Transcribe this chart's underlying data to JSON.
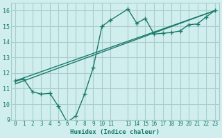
{
  "xlabel": "Humidex (Indice chaleur)",
  "bg_color": "#d0eeee",
  "grid_color": "#aacccc",
  "line_color": "#1a7a6a",
  "ylim": [
    9,
    16.5
  ],
  "xlim": [
    -0.5,
    23.5
  ],
  "yticks": [
    9,
    10,
    11,
    12,
    13,
    14,
    15,
    16
  ],
  "xticks": [
    0,
    1,
    2,
    3,
    4,
    5,
    6,
    7,
    8,
    9,
    10,
    11,
    13,
    14,
    15,
    16,
    17,
    18,
    19,
    20,
    21,
    22,
    23
  ],
  "xtick_labels": [
    "0",
    "1",
    "2",
    "3",
    "4",
    "5",
    "6",
    "7",
    "8",
    "9",
    "10",
    "11",
    "13",
    "14",
    "15",
    "16",
    "17",
    "18",
    "19",
    "20",
    "21",
    "22",
    "23"
  ],
  "curve1_x": [
    0,
    1,
    2,
    3,
    4,
    5,
    6,
    7,
    8,
    9,
    10,
    11,
    13,
    14,
    15,
    16,
    17,
    18,
    19,
    20,
    21,
    22,
    23
  ],
  "curve1_y": [
    11.5,
    11.6,
    10.8,
    10.65,
    10.7,
    9.85,
    8.85,
    9.25,
    10.65,
    12.35,
    15.0,
    15.4,
    16.1,
    15.2,
    15.5,
    14.5,
    14.55,
    14.6,
    14.7,
    15.1,
    15.15,
    15.6,
    16.0
  ],
  "curve2_x": [
    0,
    23
  ],
  "curve2_y": [
    11.5,
    16.0
  ],
  "curve3_x": [
    0,
    23
  ],
  "curve3_y": [
    11.3,
    16.0
  ]
}
